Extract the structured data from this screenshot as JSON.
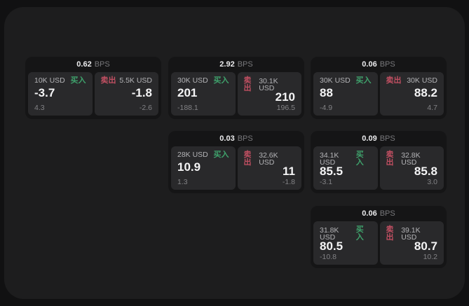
{
  "labels": {
    "unit": "BPS",
    "buy": "买入",
    "sell": "卖出"
  },
  "colors": {
    "buy_green": "#3fa26c",
    "sell_red": "#c14f62",
    "outer_bg": "#111112",
    "panel_bg": "#1d1d1e",
    "card_bg": "#151516",
    "tile_bg": "#29292b"
  },
  "cards": [
    {
      "spread": "0.62",
      "buy": {
        "size": "10K USD",
        "price": "-3.7",
        "delta": "4.3"
      },
      "sell": {
        "size": "5.5K USD",
        "price": "-1.8",
        "delta": "-2.6"
      }
    },
    {
      "spread": "2.92",
      "buy": {
        "size": "30K USD",
        "price": "201",
        "delta": "-188.1"
      },
      "sell": {
        "size": "30.1K USD",
        "price": "210",
        "delta": "196.5"
      }
    },
    {
      "spread": "0.06",
      "buy": {
        "size": "30K USD",
        "price": "88",
        "delta": "-4.9"
      },
      "sell": {
        "size": "30K USD",
        "price": "88.2",
        "delta": "4.7"
      }
    },
    {
      "spread": "0.03",
      "buy": {
        "size": "28K USD",
        "price": "10.9",
        "delta": "1.3"
      },
      "sell": {
        "size": "32.6K USD",
        "price": "11",
        "delta": "-1.8"
      }
    },
    {
      "spread": "0.09",
      "buy": {
        "size": "34.1K USD",
        "price": "85.5",
        "delta": "-3.1"
      },
      "sell": {
        "size": "32.8K USD",
        "price": "85.8",
        "delta": "3.0"
      }
    },
    {
      "spread": "0.06",
      "buy": {
        "size": "31.8K USD",
        "price": "80.5",
        "delta": "-10.8"
      },
      "sell": {
        "size": "39.1K USD",
        "price": "80.7",
        "delta": "10.2"
      }
    }
  ]
}
